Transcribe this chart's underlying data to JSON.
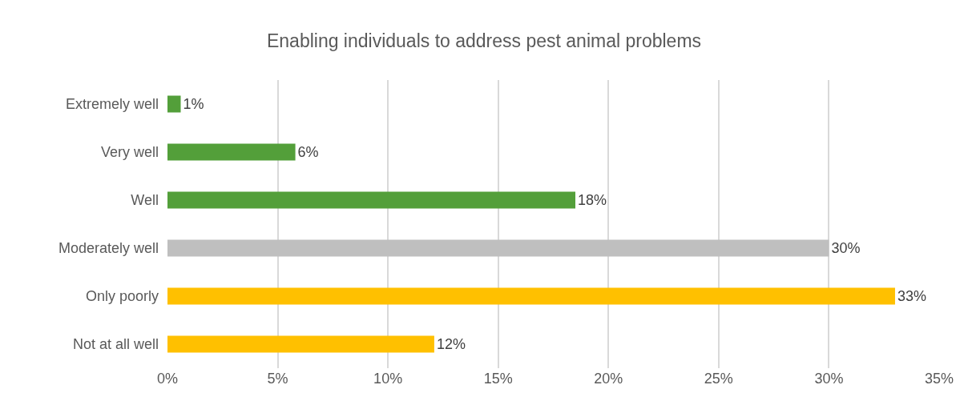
{
  "chart_data": {
    "type": "bar",
    "orientation": "horizontal",
    "title": "Enabling individuals to address pest animal problems",
    "categories": [
      "Extremely well",
      "Very well",
      "Well",
      "Moderately well",
      "Only poorly",
      "Not at all well"
    ],
    "values": [
      0.6,
      5.8,
      18.5,
      30,
      33,
      12.1
    ],
    "value_labels": [
      "1%",
      "6%",
      "18%",
      "30%",
      "33%",
      "12%"
    ],
    "colors": [
      "#539f3a",
      "#539f3a",
      "#539f3a",
      "#bfbfbf",
      "#ffc000",
      "#ffc000"
    ],
    "xlim": [
      0,
      35
    ],
    "xticks": [
      {
        "value": 0,
        "label": "0%"
      },
      {
        "value": 5,
        "label": "5%"
      },
      {
        "value": 10,
        "label": "10%"
      },
      {
        "value": 15,
        "label": "15%"
      },
      {
        "value": 20,
        "label": "20%"
      },
      {
        "value": 25,
        "label": "25%"
      },
      {
        "value": 30,
        "label": "30%"
      },
      {
        "value": 35,
        "label": "35%"
      }
    ],
    "grid": "x",
    "legend": false
  }
}
